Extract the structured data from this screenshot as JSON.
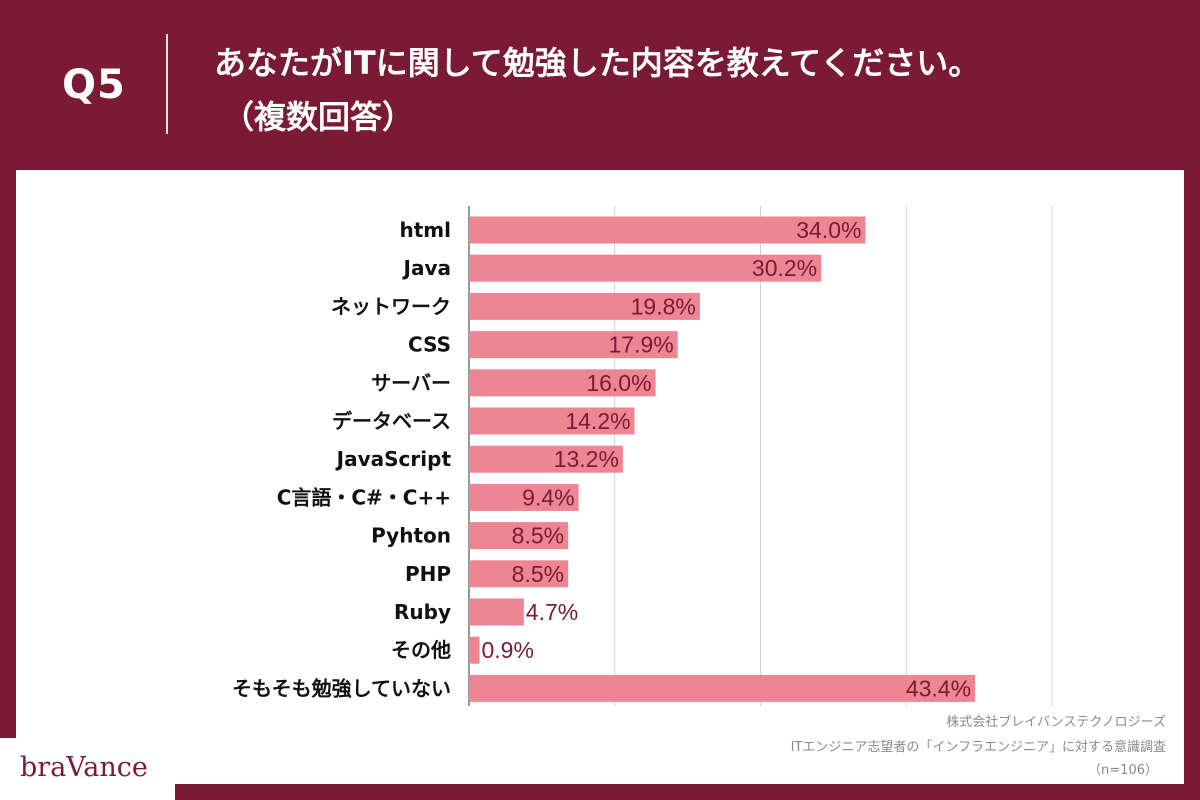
{
  "header": {
    "question_number": "Q5",
    "title_line1": "あなたがITに関して勉強した内容を教えてください。",
    "title_line2": "（複数回答）"
  },
  "footer": {
    "company": "株式会社ブレイバンステクノロジーズ",
    "survey": "ITエンジニア志望者の「インフラエンジニア」に対する意識調査",
    "sample": "（n=106）"
  },
  "logo_text": "braVance",
  "colors": {
    "background": "#7a1a35",
    "bar": "#ee8593",
    "label": "#7a1a35",
    "grid": "#d0d0d0"
  },
  "chart_data": {
    "type": "bar",
    "orientation": "horizontal",
    "categories": [
      "html",
      "Java",
      "ネットワーク",
      "CSS",
      "サーバー",
      "データベース",
      "JavaScript",
      "C言語・C#・C++",
      "Pyhton",
      "PHP",
      "Ruby",
      "その他",
      "そもそも勉強していない"
    ],
    "values": [
      34.0,
      30.2,
      19.8,
      17.9,
      16.0,
      14.2,
      13.2,
      9.4,
      8.5,
      8.5,
      4.7,
      0.9,
      43.4
    ],
    "data_labels": [
      "34.0%",
      "30.2%",
      "19.8%",
      "17.9%",
      "16.0%",
      "14.2%",
      "13.2%",
      "9.4%",
      "8.5%",
      "8.5%",
      "4.7%",
      "0.9%",
      "43.4%"
    ],
    "xlim": [
      0,
      50
    ],
    "grid": true,
    "legend": "none"
  }
}
